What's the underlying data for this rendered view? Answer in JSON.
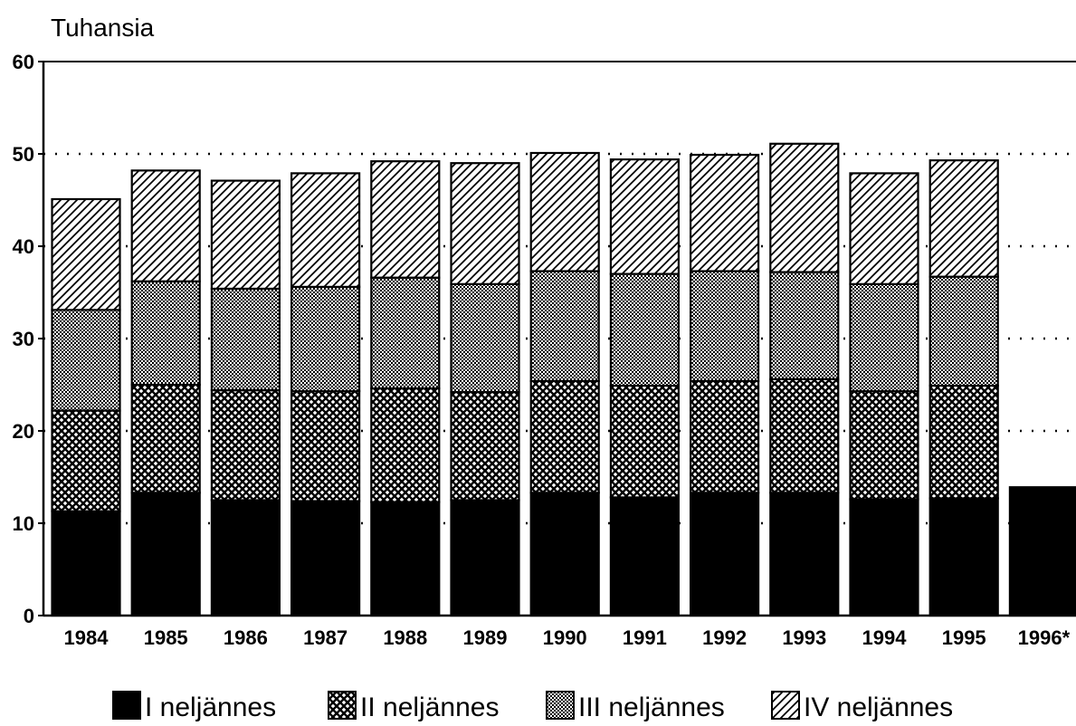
{
  "chart_data": {
    "type": "bar",
    "stacked": true,
    "title": "",
    "ylabel": "Tuhansia",
    "xlabel": "",
    "ylim": [
      0,
      60
    ],
    "yticks": [
      0,
      10,
      20,
      30,
      40,
      50,
      60
    ],
    "grid": "horizontal dotted",
    "legend_position": "bottom",
    "categories": [
      "1984",
      "1985",
      "1986",
      "1987",
      "1988",
      "1989",
      "1990",
      "1991",
      "1992",
      "1993",
      "1994",
      "1995",
      "1996*"
    ],
    "series": [
      {
        "name": "I neljännes",
        "pattern": "solid",
        "values": [
          11.3,
          13.3,
          12.5,
          12.4,
          12.3,
          12.5,
          13.3,
          12.8,
          13.3,
          13.3,
          12.6,
          12.7,
          13.9
        ]
      },
      {
        "name": "II neljännes",
        "pattern": "crosshatch",
        "values": [
          10.9,
          11.7,
          11.9,
          11.9,
          12.3,
          11.7,
          12.1,
          12.1,
          12.1,
          12.3,
          11.7,
          12.2,
          0
        ]
      },
      {
        "name": "III neljännes",
        "pattern": "fine-dots",
        "values": [
          10.9,
          11.2,
          11.0,
          11.3,
          12.0,
          11.7,
          11.9,
          12.1,
          11.9,
          11.6,
          11.6,
          11.8,
          0
        ]
      },
      {
        "name": "IV neljännes",
        "pattern": "diagonal",
        "values": [
          12.0,
          12.0,
          11.7,
          12.3,
          12.6,
          13.1,
          12.8,
          12.4,
          12.6,
          13.9,
          12.0,
          12.6,
          0
        ]
      }
    ]
  }
}
